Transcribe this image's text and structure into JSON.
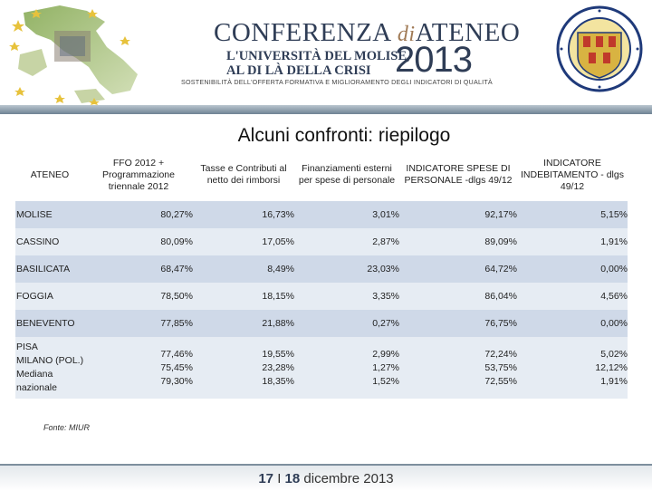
{
  "header": {
    "conf_main": "CONFERENZA",
    "conf_di": "di",
    "conf_ateneo": "ATENEO",
    "sub_line1": "L'UNIVERSITÀ DEL MOLISE,",
    "sub_line2": "AL DI LÀ DELLA CRISI",
    "year": "2013",
    "tagline": "SOSTENIBILITÀ DELL'OFFERTA FORMATIVA E MIGLIORAMENTO DEGLI INDICATORI DI QUALITÀ",
    "map_icon": "italy-map-icon",
    "seal_icon": "university-seal-icon"
  },
  "slide_title": "Alcuni confronti: riepilogo",
  "table": {
    "columns": [
      "ATENEO",
      "FFO 2012 + Programmazione triennale 2012",
      "Tasse e Contributi al netto dei rimborsi",
      "Finanziamenti esterni per spese di personale",
      "INDICATORE SPESE DI PERSONALE -dlgs 49/12",
      "INDICATORE INDEBITAMENTO - dlgs 49/12"
    ],
    "rows": [
      [
        "MOLISE",
        "80,27%",
        "16,73%",
        "3,01%",
        "92,17%",
        "5,15%"
      ],
      [
        "CASSINO",
        "80,09%",
        "17,05%",
        "2,87%",
        "89,09%",
        "1,91%"
      ],
      [
        "BASILICATA",
        "68,47%",
        "8,49%",
        "23,03%",
        "64,72%",
        "0,00%"
      ],
      [
        "FOGGIA",
        "78,50%",
        "18,15%",
        "3,35%",
        "86,04%",
        "4,56%"
      ],
      [
        "BENEVENTO",
        "77,85%",
        "21,88%",
        "0,27%",
        "76,75%",
        "0,00%"
      ]
    ],
    "last_rows": {
      "names": [
        "PISA",
        "MILANO (POL.)",
        "Mediana nazionale"
      ],
      "pisa": [
        "77,46%",
        "19,55%",
        "2,99%",
        "72,24%",
        "5,02%"
      ],
      "milano": [
        "75,45%",
        "23,28%",
        "1,27%",
        "53,75%",
        "12,12%"
      ],
      "mediana": [
        "79,30%",
        "18,35%",
        "1,52%",
        "72,55%",
        "1,91%"
      ]
    }
  },
  "source_note": "Fonte: MIUR",
  "footer": {
    "day1": "17",
    "sep": "I",
    "day2": "18",
    "month_year": "dicembre 2013"
  }
}
